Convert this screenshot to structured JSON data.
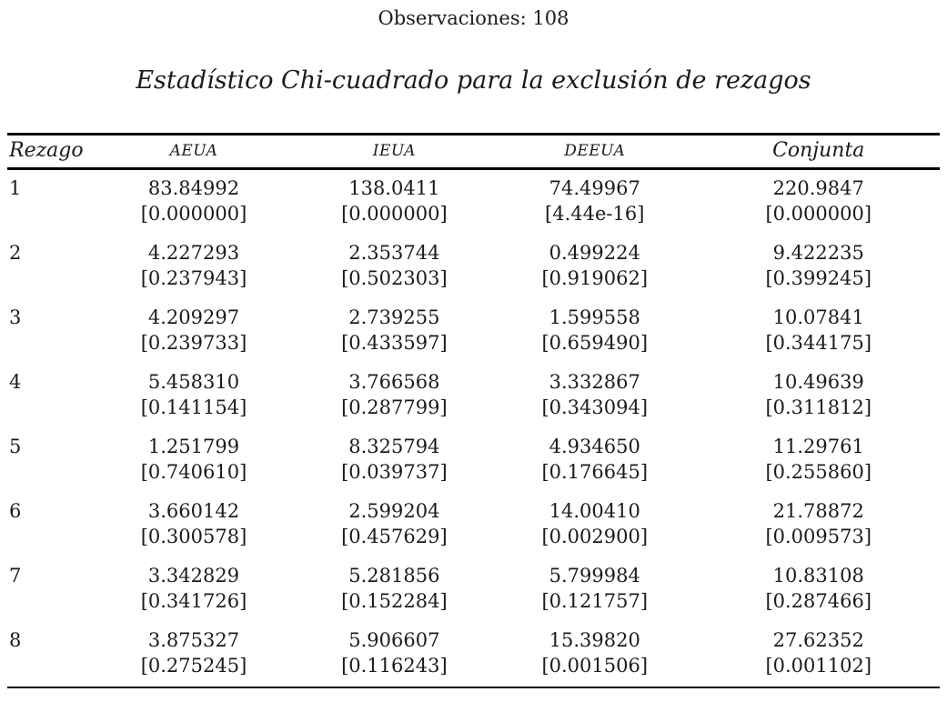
{
  "page": {
    "observations_text": "Observaciones: 108",
    "table_title": "Estadístico Chi-cuadrado para la exclusión de rezagos"
  },
  "table": {
    "columns": [
      "Rezago",
      "AEUA",
      "IEUA",
      "DEEUA",
      "Conjunta"
    ],
    "rows": [
      {
        "lag": "1",
        "stats": [
          "83.84992",
          "138.0411",
          "74.49967",
          "220.9847"
        ],
        "pvalues": [
          "[0.000000]",
          "[0.000000]",
          "[4.44e-16]",
          "[0.000000]"
        ]
      },
      {
        "lag": "2",
        "stats": [
          "4.227293",
          "2.353744",
          "0.499224",
          "9.422235"
        ],
        "pvalues": [
          "[0.237943]",
          "[0.502303]",
          "[0.919062]",
          "[0.399245]"
        ]
      },
      {
        "lag": "3",
        "stats": [
          "4.209297",
          "2.739255",
          "1.599558",
          "10.07841"
        ],
        "pvalues": [
          "[0.239733]",
          "[0.433597]",
          "[0.659490]",
          "[0.344175]"
        ]
      },
      {
        "lag": "4",
        "stats": [
          "5.458310",
          "3.766568",
          "3.332867",
          "10.49639"
        ],
        "pvalues": [
          "[0.141154]",
          "[0.287799]",
          "[0.343094]",
          "[0.311812]"
        ]
      },
      {
        "lag": "5",
        "stats": [
          "1.251799",
          "8.325794",
          "4.934650",
          "11.29761"
        ],
        "pvalues": [
          "[0.740610]",
          "[0.039737]",
          "[0.176645]",
          "[0.255860]"
        ]
      },
      {
        "lag": "6",
        "stats": [
          "3.660142",
          "2.599204",
          "14.00410",
          "21.78872"
        ],
        "pvalues": [
          "[0.300578]",
          "[0.457629]",
          "[0.002900]",
          "[0.009573]"
        ]
      },
      {
        "lag": "7",
        "stats": [
          "3.342829",
          "5.281856",
          "5.799984",
          "10.83108"
        ],
        "pvalues": [
          "[0.341726]",
          "[0.152284]",
          "[0.121757]",
          "[0.287466]"
        ]
      },
      {
        "lag": "8",
        "stats": [
          "3.875327",
          "5.906607",
          "15.39820",
          "27.62352"
        ],
        "pvalues": [
          "[0.275245]",
          "[0.116243]",
          "[0.001506]",
          "[0.001102]"
        ]
      }
    ]
  },
  "colors": {
    "text": "#1b1b1b",
    "rule": "#000000",
    "background": "#ffffff"
  }
}
